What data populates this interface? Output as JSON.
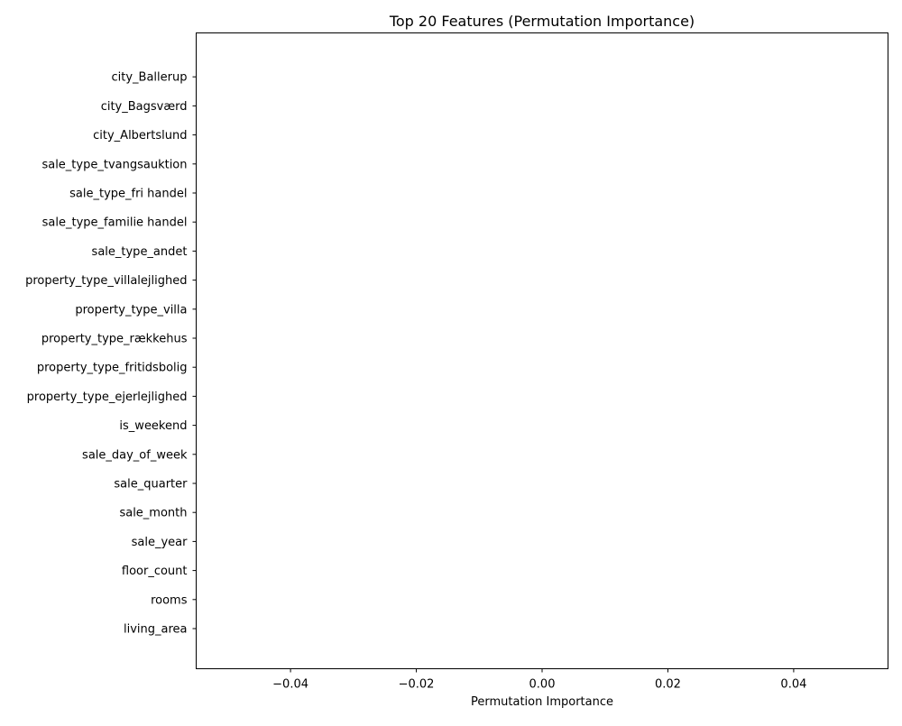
{
  "chart_data": {
    "type": "bar",
    "orientation": "horizontal",
    "title": "Top 20 Features (Permutation Importance)",
    "xlabel": "Permutation Importance",
    "ylabel": "",
    "xlim": [
      -0.055,
      0.055
    ],
    "xticks": [
      -0.04,
      -0.02,
      0.0,
      0.02,
      0.04
    ],
    "xtick_labels": [
      "−0.04",
      "−0.02",
      "0.00",
      "0.02",
      "0.04"
    ],
    "grid": false,
    "legend": "none",
    "bar_color": "#1f77b4",
    "categories": [
      "living_area",
      "rooms",
      "floor_count",
      "sale_year",
      "sale_month",
      "sale_quarter",
      "sale_day_of_week",
      "is_weekend",
      "property_type_ejerlejlighed",
      "property_type_fritidsbolig",
      "property_type_rækkehus",
      "property_type_villa",
      "property_type_villalejlighed",
      "sale_type_andet",
      "sale_type_familie handel",
      "sale_type_fri handel",
      "sale_type_tvangsauktion",
      "city_Albertslund",
      "city_Bagsværd",
      "city_Ballerup"
    ],
    "values": [
      0,
      0,
      0,
      0,
      0,
      0,
      0,
      0,
      0,
      0,
      0,
      0,
      0,
      0,
      0,
      0,
      0,
      0,
      0,
      0
    ]
  }
}
